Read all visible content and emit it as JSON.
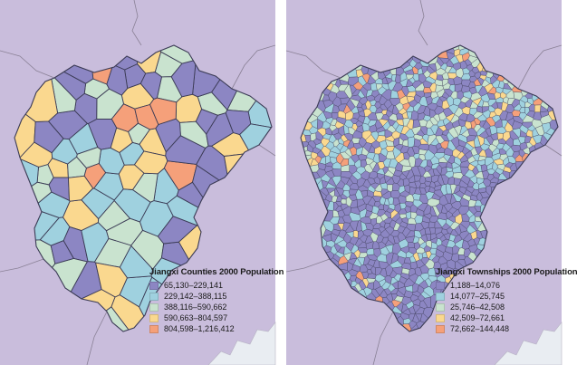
{
  "colors": {
    "background": "#c9bddc",
    "border": "#3b3b55",
    "coast": "#e9edf2",
    "class_colors": [
      "#8c86c3",
      "#9fd1df",
      "#c9e3cf",
      "#fad88f",
      "#f5a07a"
    ]
  },
  "maps": [
    {
      "title": "Jiangxi Counties 2000 Population",
      "legend": [
        {
          "label": "65,130–229,141",
          "color": "#8c86c3"
        },
        {
          "label": "229,142–388,115",
          "color": "#9fd1df"
        },
        {
          "label": "388,116–590,662",
          "color": "#c9e3cf"
        },
        {
          "label": "590,663–804,597",
          "color": "#fad88f"
        },
        {
          "label": "804,598–1,216,412",
          "color": "#f5a07a"
        }
      ]
    },
    {
      "title": "Jiangxi Townships 2000 Population",
      "legend": [
        {
          "label": "1,188–14,076",
          "color": "#8c86c3"
        },
        {
          "label": "14,077–25,745",
          "color": "#9fd1df"
        },
        {
          "label": "25,746–42,508",
          "color": "#c9e3cf"
        },
        {
          "label": "42,509–72,661",
          "color": "#fad88f"
        },
        {
          "label": "72,662–144,448",
          "color": "#f5a07a"
        }
      ]
    }
  ]
}
